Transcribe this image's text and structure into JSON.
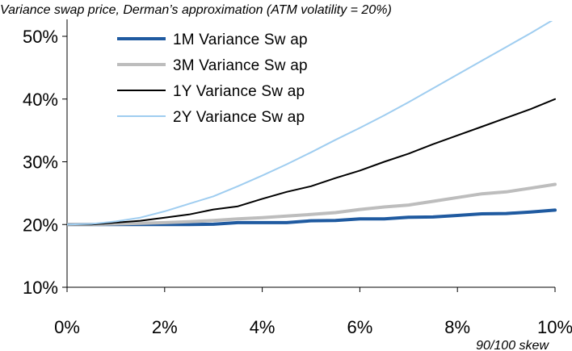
{
  "chart_data": {
    "type": "line",
    "title": "Variance swap price, Derman’s approximation (ATM volatility = 20%)",
    "xlabel": "90/100 skew",
    "ylabel": "",
    "xlim": [
      0,
      10
    ],
    "ylim": [
      10,
      52
    ],
    "x_ticks": [
      0,
      2,
      4,
      6,
      8,
      10
    ],
    "x_tick_labels": [
      "0%",
      "2%",
      "4%",
      "6%",
      "8%",
      "10%"
    ],
    "y_ticks": [
      10,
      20,
      30,
      40,
      50
    ],
    "y_tick_labels": [
      "10%",
      "20%",
      "30%",
      "40%",
      "50%"
    ],
    "grid": false,
    "legend_position": "top-left",
    "series": [
      {
        "name": "1M Variance Sw ap",
        "color": "#1f5aa0",
        "width": 4,
        "x": [
          0,
          0.5,
          1,
          1.5,
          2,
          2.5,
          3,
          3.5,
          4,
          4.5,
          5,
          5.5,
          6,
          6.5,
          7,
          7.5,
          8,
          8.5,
          9,
          9.5,
          10
        ],
        "y": [
          20.0,
          20.0,
          20.0,
          20.0,
          20.0,
          20.0,
          20.05,
          20.3,
          20.3,
          20.3,
          20.6,
          20.65,
          20.9,
          20.9,
          21.15,
          21.2,
          21.45,
          21.7,
          21.75,
          22.0,
          22.3
        ]
      },
      {
        "name": "3M Variance Sw ap",
        "color": "#bdbdbd",
        "width": 4,
        "x": [
          0,
          0.5,
          1,
          1.5,
          2,
          2.5,
          3,
          3.5,
          4,
          4.5,
          5,
          5.5,
          6,
          6.5,
          7,
          7.5,
          8,
          8.5,
          9,
          9.5,
          10
        ],
        "y": [
          20.0,
          20.0,
          20.1,
          20.2,
          20.3,
          20.45,
          20.65,
          20.9,
          21.1,
          21.35,
          21.6,
          21.9,
          22.4,
          22.8,
          23.1,
          23.7,
          24.3,
          24.9,
          25.2,
          25.8,
          26.4
        ]
      },
      {
        "name": "1Y Variance Sw ap",
        "color": "#000000",
        "width": 2,
        "x": [
          0,
          0.5,
          1,
          1.5,
          2,
          2.5,
          3,
          3.5,
          4,
          4.5,
          5,
          5.5,
          6,
          6.5,
          7,
          7.5,
          8,
          8.5,
          9,
          9.5,
          10
        ],
        "y": [
          20.0,
          20.0,
          20.3,
          20.6,
          21.1,
          21.6,
          22.4,
          22.9,
          24.1,
          25.2,
          26.1,
          27.4,
          28.6,
          30.0,
          31.3,
          32.8,
          34.2,
          35.6,
          37.0,
          38.4,
          40.0
        ]
      },
      {
        "name": "2Y Variance Sw ap",
        "color": "#9fcdf0",
        "width": 2,
        "x": [
          0,
          0.5,
          1,
          1.5,
          2,
          2.5,
          3,
          3.5,
          4,
          4.5,
          5,
          5.5,
          6,
          6.5,
          7,
          7.5,
          8,
          8.5,
          9,
          9.5,
          10
        ],
        "y": [
          20.0,
          20.1,
          20.5,
          21.1,
          22.1,
          23.3,
          24.5,
          26.1,
          27.8,
          29.6,
          31.5,
          33.5,
          35.4,
          37.4,
          39.5,
          41.7,
          43.9,
          46.1,
          48.3,
          50.5,
          52.8
        ]
      }
    ]
  }
}
